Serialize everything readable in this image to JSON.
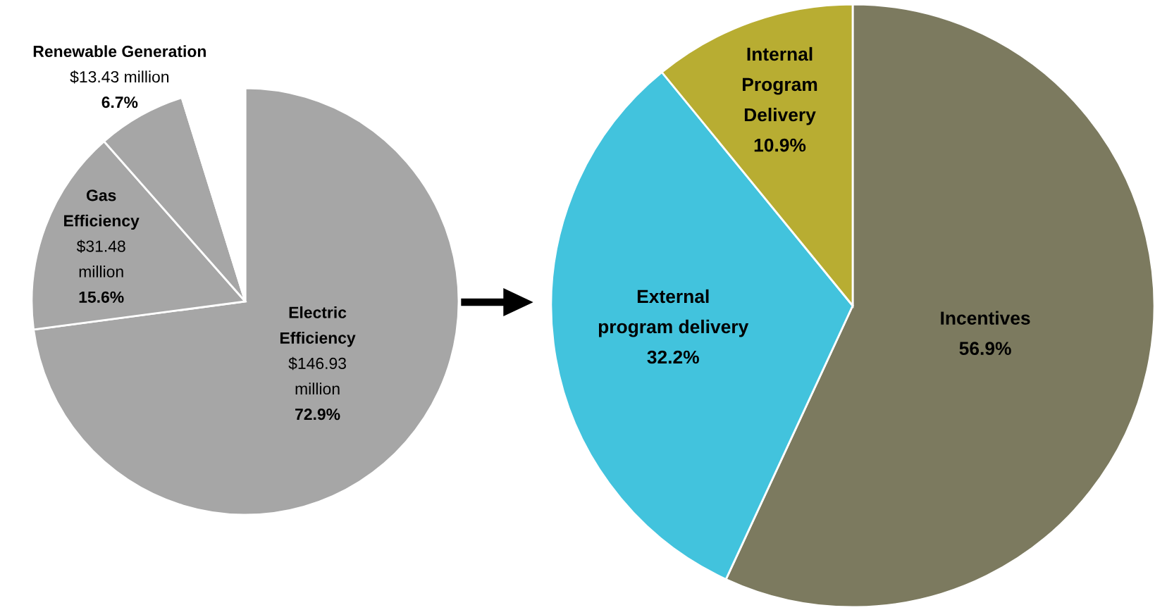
{
  "chart_data": [
    {
      "type": "pie",
      "categories": [
        "Electric\nEfficiency",
        "Gas\nEfficiency",
        "Renewable Generation",
        null
      ],
      "values": [
        72.9,
        15.6,
        6.7,
        4.8
      ],
      "colors": [
        "#a6a6a6",
        "#a6a6a6",
        "#a6a6a6",
        "#ffffff"
      ],
      "value_labels": [
        "$146.93\nmillion\n72.9%",
        "$31.48\nmillion\n15.6%",
        "$13.43 million\n6.7%",
        null
      ]
    },
    {
      "type": "pie",
      "categories": [
        "Incentives",
        "External\nprogram delivery",
        "Internal\nProgram\nDelivery"
      ],
      "values": [
        56.9,
        32.2,
        10.9
      ],
      "colors": [
        "#7c7a5f",
        "#42c3dd",
        "#b8ad32"
      ],
      "value_labels": [
        "56.9%",
        "32.2%",
        "10.9%"
      ]
    }
  ]
}
